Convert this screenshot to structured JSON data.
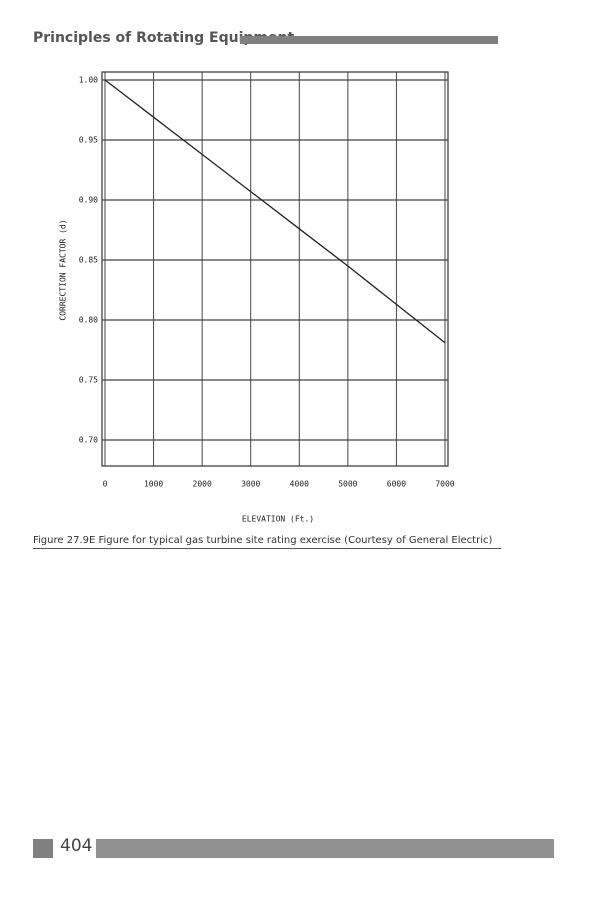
{
  "header": {
    "title": "Principles of Rotating Equipment"
  },
  "chart_data": {
    "type": "line",
    "xlabel": "ELEVATION (Ft.)",
    "ylabel": "CORRECTION FACTOR (d)",
    "x": [
      0,
      1000,
      2000,
      3000,
      4000,
      5000,
      6000,
      7000
    ],
    "series": [
      {
        "color": "#222222",
        "values": [
          1.0,
          0.969,
          0.938,
          0.907,
          0.876,
          0.845,
          0.813,
          0.781
        ]
      }
    ],
    "xlim": [
      0,
      7000
    ],
    "xticks": [
      0,
      1000,
      2000,
      3000,
      4000,
      5000,
      6000,
      7000
    ],
    "ylim": [
      0.68,
      1.005
    ],
    "yticks": [
      {
        "value": 0.7,
        "label": "0.70"
      },
      0.75,
      {
        "value": 0.8,
        "label": "0.80"
      },
      0.85,
      {
        "value": 0.9,
        "label": "0.90"
      },
      0.95,
      {
        "value": 1.0,
        "label": "1.00"
      }
    ],
    "grid": true
  },
  "caption": "Figure 27.9E Figure for typical gas turbine site rating exercise (Courtesy of General Electric)",
  "page_number": "404"
}
